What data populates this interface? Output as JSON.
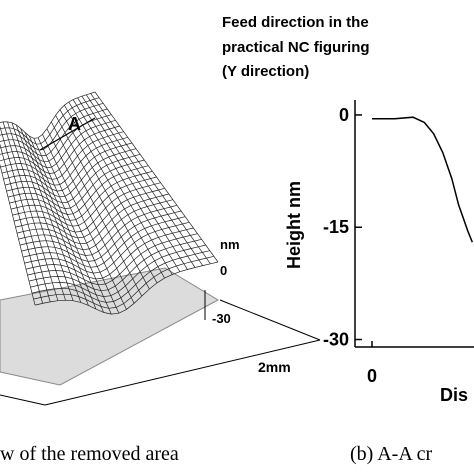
{
  "left_panel": {
    "annotation_lines": [
      "Feed direction in the",
      "practical NC figuring",
      "(Y direction)"
    ],
    "section_label": "A",
    "z_unit": "nm",
    "z_ticks": [
      "0",
      "-30"
    ],
    "scale_label": "2mm",
    "caption": "w of the removed area"
  },
  "chart_data": {
    "type": "line",
    "caption": "(b) A-A cr",
    "y_label": "Height  nm",
    "x_label": "Dis",
    "x": [
      0,
      1,
      1.8,
      2.3,
      2.7,
      3.1,
      3.5,
      3.8,
      4.2,
      4.4
    ],
    "values": [
      -0.5,
      -0.5,
      -0.3,
      -1,
      -2.5,
      -5,
      -8.5,
      -12,
      -15.5,
      -17
    ],
    "color": "#000000",
    "xlim": [
      0,
      10
    ],
    "xticks": [
      0
    ],
    "ylim": [
      -31,
      2
    ],
    "yticks": [
      0,
      -15,
      -30
    ]
  }
}
